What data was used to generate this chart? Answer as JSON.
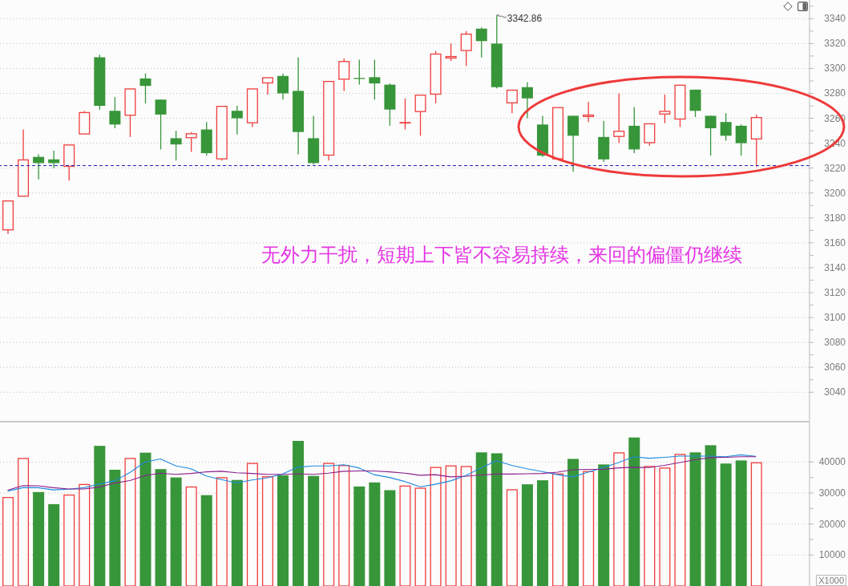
{
  "chart_data": [
    {
      "type": "candlestick",
      "categories": [
        null,
        null,
        null,
        null,
        null,
        null,
        null,
        null,
        null,
        null,
        null,
        null,
        null,
        null,
        null,
        null,
        null,
        null,
        null,
        null,
        null,
        null,
        null,
        null,
        null,
        null,
        null,
        null,
        null,
        null,
        null,
        null,
        null,
        null,
        null,
        null,
        null,
        null,
        null,
        null,
        null,
        null,
        null,
        null,
        null,
        null,
        null,
        null,
        null,
        null,
        null,
        null,
        null
      ],
      "ohlc": [
        [
          3170,
          3194,
          3167,
          3194
        ],
        [
          3197,
          3251,
          3197,
          3227
        ],
        [
          3229,
          3231,
          3211,
          3224
        ],
        [
          3227,
          3234,
          3220,
          3224
        ],
        [
          3221,
          3239,
          3210,
          3239
        ],
        [
          3247,
          3266,
          3247,
          3265
        ],
        [
          3309,
          3311,
          3267,
          3270
        ],
        [
          3266,
          3277,
          3252,
          3255
        ],
        [
          3262,
          3284,
          3245,
          3284
        ],
        [
          3292,
          3296,
          3272,
          3286
        ],
        [
          3275,
          3275,
          3235,
          3263
        ],
        [
          3244,
          3250,
          3226,
          3239
        ],
        [
          3244,
          3249,
          3233,
          3248
        ],
        [
          3251,
          3257,
          3230,
          3232
        ],
        [
          3227,
          3270,
          3226,
          3270
        ],
        [
          3266,
          3270,
          3247,
          3260
        ],
        [
          3256,
          3284,
          3253,
          3284
        ],
        [
          3288,
          3293,
          3279,
          3293
        ],
        [
          3294,
          3296,
          3275,
          3280
        ],
        [
          3282,
          3309,
          3231,
          3249
        ],
        [
          3244,
          3262,
          3223,
          3224
        ],
        [
          3230,
          3290,
          3226,
          3290
        ],
        [
          3291,
          3308,
          3282,
          3306
        ],
        [
          3292,
          3307,
          3287,
          3292
        ],
        [
          3293,
          3307,
          3275,
          3288
        ],
        [
          3287,
          3288,
          3254,
          3267
        ],
        [
          3256,
          3276,
          3251,
          3257
        ],
        [
          3265,
          3279,
          3246,
          3279
        ],
        [
          3279,
          3314,
          3272,
          3312
        ],
        [
          3308,
          3320,
          3306,
          3310
        ],
        [
          3314,
          3330,
          3302,
          3328
        ],
        [
          3332,
          3333,
          3309,
          3322
        ],
        [
          3320,
          3342.86,
          3284,
          3285
        ],
        [
          3272,
          3283,
          3264,
          3283
        ],
        [
          3285,
          3289,
          3260,
          3276
        ],
        [
          3255,
          3262,
          3229,
          3230
        ],
        [
          3227,
          3269,
          3227,
          3269
        ],
        [
          3262,
          3262,
          3217,
          3246
        ],
        [
          3261,
          3273,
          3257,
          3263
        ],
        [
          3245,
          3258,
          3225,
          3227
        ],
        [
          3245,
          3280,
          3240,
          3250
        ],
        [
          3254,
          3269,
          3232,
          3235
        ],
        [
          3240,
          3256,
          3238,
          3256
        ],
        [
          3263,
          3279,
          3256,
          3266
        ],
        [
          3259,
          3287,
          3253,
          3287
        ],
        [
          3283,
          3283,
          3261,
          3266
        ],
        [
          3262,
          3262,
          3230,
          3252
        ],
        [
          3257,
          3264,
          3242,
          3246
        ],
        [
          3254,
          3255,
          3230,
          3240
        ],
        [
          3243,
          3263,
          3221,
          3261
        ],
        null,
        null,
        null
      ],
      "colors": [
        "#f03c3c",
        "#f03c3c",
        "#38963a",
        "#38963a",
        "#f03c3c",
        "#f03c3c",
        "#38963a",
        "#38963a",
        "#f03c3c",
        "#38963a",
        "#38963a",
        "#38963a",
        "#f03c3c",
        "#38963a",
        "#f03c3c",
        "#38963a",
        "#f03c3c",
        "#f03c3c",
        "#38963a",
        "#38963a",
        "#38963a",
        "#f03c3c",
        "#f03c3c",
        "#38963a",
        "#38963a",
        "#38963a",
        "#f03c3c",
        "#f03c3c",
        "#f03c3c",
        "#f03c3c",
        "#f03c3c",
        "#38963a",
        "#38963a",
        "#f03c3c",
        "#38963a",
        "#38963a",
        "#f03c3c",
        "#38963a",
        "#f03c3c",
        "#38963a",
        "#f03c3c",
        "#38963a",
        "#f03c3c",
        "#f03c3c",
        "#f03c3c",
        "#38963a",
        "#38963a",
        "#38963a",
        "#38963a",
        "#f03c3c",
        null,
        null,
        null
      ],
      "ylim": [
        3017,
        3355
      ],
      "yticks": [
        3040,
        {
          "value": 3050,
          "label": null
        },
        3060,
        {
          "value": 3070,
          "label": null
        },
        3080,
        {
          "value": 3090,
          "label": null
        },
        3100,
        {
          "value": 3110,
          "label": null
        },
        3120,
        {
          "value": 3130,
          "label": null
        },
        3140,
        {
          "value": 3150,
          "label": null
        },
        3160,
        {
          "value": 3170,
          "label": null
        },
        3180,
        {
          "value": 3190,
          "label": null
        },
        3200,
        {
          "value": 3210,
          "label": null
        },
        3220,
        {
          "value": 3230,
          "label": null
        },
        3240,
        {
          "value": 3250,
          "label": null
        },
        3260,
        {
          "value": 3270,
          "label": null
        },
        3280,
        {
          "value": 3290,
          "label": null
        },
        3300,
        {
          "value": 3310,
          "label": null
        },
        3320,
        {
          "value": 3330,
          "label": null
        },
        3340,
        {
          "value": 3350,
          "label": null
        }
      ],
      "grid": "y",
      "tick_labels": "y",
      "ref_lines": [
        {
          "axis": "y",
          "value": 3222,
          "color": "#1a1ab4",
          "line_style": "dashed"
        }
      ],
      "annotations": [
        "3342.86",
        "无外力干扰，短期上下皆不容易持续，来回的偏僵仍继续"
      ]
    },
    {
      "type": "bar",
      "categories": [
        null,
        null,
        null,
        null,
        null,
        null,
        null,
        null,
        null,
        null,
        null,
        null,
        null,
        null,
        null,
        null,
        null,
        null,
        null,
        null,
        null,
        null,
        null,
        null,
        null,
        null,
        null,
        null,
        null,
        null,
        null,
        null,
        null,
        null,
        null,
        null,
        null,
        null,
        null,
        null,
        null,
        null,
        null,
        null,
        null,
        null,
        null,
        null,
        null,
        null,
        null,
        null,
        null
      ],
      "series": [
        {
          "type": "bar",
          "colors": [
            "#f03c3c",
            "#f03c3c",
            "#38963a",
            "#38963a",
            "#f03c3c",
            "#f03c3c",
            "#38963a",
            "#38963a",
            "#f03c3c",
            "#38963a",
            "#38963a",
            "#38963a",
            "#f03c3c",
            "#38963a",
            "#f03c3c",
            "#38963a",
            "#f03c3c",
            "#f03c3c",
            "#38963a",
            "#38963a",
            "#38963a",
            "#f03c3c",
            "#f03c3c",
            "#38963a",
            "#38963a",
            "#38963a",
            "#f03c3c",
            "#f03c3c",
            "#f03c3c",
            "#f03c3c",
            "#f03c3c",
            "#38963a",
            "#38963a",
            "#f03c3c",
            "#38963a",
            "#38963a",
            "#f03c3c",
            "#38963a",
            "#f03c3c",
            "#38963a",
            "#f03c3c",
            "#38963a",
            "#f03c3c",
            "#f03c3c",
            "#f03c3c",
            "#38963a",
            "#38963a",
            "#38963a",
            "#38963a",
            "#f03c3c",
            null,
            null,
            null
          ],
          "values": [
            28700,
            41300,
            30300,
            26400,
            29500,
            32900,
            45200,
            37500,
            41300,
            43000,
            37700,
            35000,
            32100,
            29300,
            35100,
            34200,
            39700,
            35400,
            35700,
            46800,
            35500,
            39700,
            39000,
            32100,
            33400,
            30900,
            32400,
            31700,
            38400,
            38900,
            38700,
            43100,
            42800,
            31200,
            32800,
            34100,
            36300,
            41000,
            37100,
            39200,
            43100,
            47900,
            38700,
            38200,
            42600,
            43100,
            45400,
            39500,
            40500,
            39900,
            null,
            null,
            null
          ]
        },
        {
          "type": "line",
          "color": "#1e8ae0",
          "values": [
            30600,
            31700,
            31700,
            31000,
            31200,
            31700,
            32900,
            33900,
            36600,
            40000,
            41000,
            38800,
            37800,
            35500,
            34300,
            33200,
            34200,
            34900,
            36100,
            38300,
            38700,
            38700,
            39100,
            38100,
            35900,
            35000,
            33700,
            32000,
            32800,
            33900,
            35600,
            38100,
            40400,
            38900,
            37800,
            36900,
            35900,
            35200,
            36700,
            38200,
            39800,
            41700,
            41200,
            41500,
            41900,
            41900,
            41900,
            41700,
            42300,
            41800,
            null,
            null,
            null
          ]
        },
        {
          "type": "line",
          "color": "#8a1f8c",
          "values": [
            30900,
            32400,
            32300,
            31700,
            31300,
            31300,
            31900,
            33200,
            34000,
            35600,
            36400,
            36000,
            36300,
            36800,
            37000,
            36500,
            36300,
            36000,
            36000,
            36200,
            36000,
            36400,
            37000,
            37100,
            37100,
            36800,
            36400,
            35700,
            35900,
            35200,
            35400,
            35800,
            36100,
            36100,
            36200,
            36300,
            36700,
            37500,
            37600,
            37600,
            38100,
            38300,
            38200,
            38900,
            39800,
            40700,
            41400,
            41500,
            41700,
            41700,
            null,
            null,
            null
          ]
        }
      ],
      "ylim": [
        0,
        53000
      ],
      "yticks": [
        10000,
        {
          "value": 15000,
          "label": null
        },
        20000,
        {
          "value": 25000,
          "label": null
        },
        30000,
        {
          "value": 35000,
          "label": null
        },
        40000
      ],
      "ylabel": "X1000",
      "grid": "y",
      "tick_labels": "y",
      "marker": "none",
      "line_style": "solid"
    }
  ]
}
